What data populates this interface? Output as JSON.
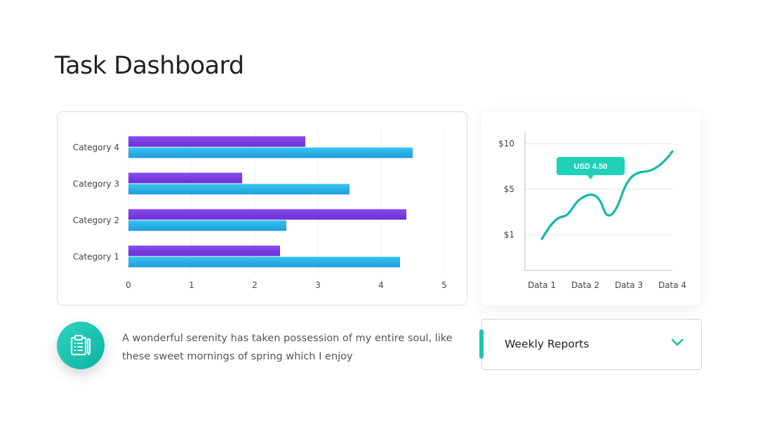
{
  "page": {
    "title": "Task Dashboard"
  },
  "chart_data": [
    {
      "type": "bar",
      "orientation": "horizontal",
      "categories": [
        "Category 1",
        "Category 2",
        "Category 3",
        "Category 4"
      ],
      "series": [
        {
          "values": [
            2.4,
            4.4,
            1.8,
            2.8
          ],
          "color": "#7b3fe4"
        },
        {
          "values": [
            4.3,
            2.5,
            3.5,
            4.5
          ],
          "color": "#29aee6"
        }
      ],
      "xlim": [
        0,
        5
      ],
      "xticks": [
        "0",
        "1",
        "2",
        "3",
        "4",
        "5"
      ],
      "grid": true,
      "legend": "none"
    },
    {
      "type": "line",
      "categories": [
        "Data 1",
        "Data 2",
        "Data 3",
        "Data 4"
      ],
      "series": [
        {
          "values": [
            1,
            4.5,
            5,
            9
          ],
          "color": "#12b8a6"
        }
      ],
      "yticks": [
        "$1",
        "$5",
        "$10"
      ],
      "grid": true,
      "annotation": {
        "text": "USD 4.50",
        "category": "Data 2",
        "value": 4.5,
        "color": "#1fd1b8"
      }
    }
  ],
  "note": {
    "icon": "clipboard-icon",
    "text": "A wonderful serenity has taken possession of my entire soul, like these sweet mornings of spring which I enjoy"
  },
  "dropdown": {
    "label": "Weekly Reports",
    "accent": "#1cc7b1",
    "icon": "chevron-down-icon"
  }
}
